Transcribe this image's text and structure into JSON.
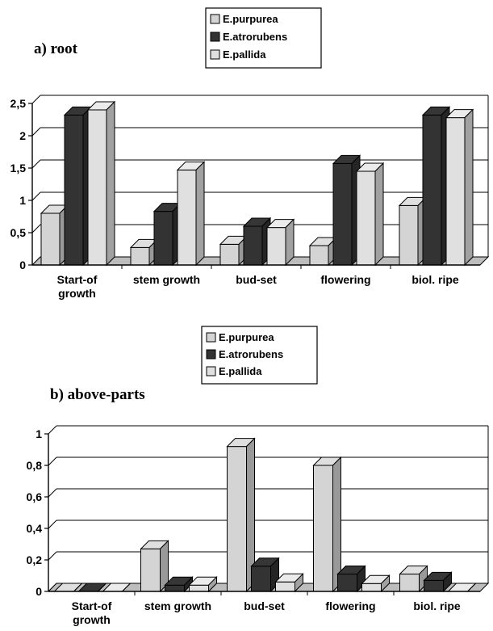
{
  "colors": {
    "purpurea": "#d4d4d4",
    "atrorubens": "#333333",
    "pallida": "#e0e0e0",
    "grid": "#000000",
    "axis": "#000000"
  },
  "chart_data": [
    {
      "type": "bar",
      "title": "a) root",
      "categories": [
        "Start-of growth",
        "stem growth",
        "bud-set",
        "flowering",
        "biol. ripe"
      ],
      "category_lines": [
        [
          "Start-of",
          "growth"
        ],
        [
          "stem growth"
        ],
        [
          "bud-set"
        ],
        [
          "flowering"
        ],
        [
          "biol. ripe"
        ]
      ],
      "series": [
        {
          "name": "E.purpurea",
          "values": [
            0.8,
            0.27,
            0.32,
            0.3,
            0.92
          ]
        },
        {
          "name": "E.atrorubens",
          "values": [
            2.32,
            0.83,
            0.6,
            1.57,
            2.32
          ]
        },
        {
          "name": "E.pallida",
          "values": [
            2.4,
            1.47,
            0.58,
            1.45,
            2.28
          ]
        }
      ],
      "ylim": [
        0,
        2.5
      ],
      "yticks": [
        "0",
        "0,5",
        "1",
        "1,5",
        "2",
        "2,5"
      ],
      "ytick_values": [
        0,
        0.5,
        1,
        1.5,
        2,
        2.5
      ],
      "grid": true,
      "legend": "top-center",
      "xlabel": "",
      "ylabel": ""
    },
    {
      "type": "bar",
      "title": "b) above-parts",
      "categories": [
        "Start-of growth",
        "stem growth",
        "bud-set",
        "flowering",
        "biol. ripe"
      ],
      "category_lines": [
        [
          "Start-of",
          "growth"
        ],
        [
          "stem growth"
        ],
        [
          "bud-set"
        ],
        [
          "flowering"
        ],
        [
          "biol. ripe"
        ]
      ],
      "series": [
        {
          "name": "E.purpurea",
          "values": [
            0,
            0.27,
            0.92,
            0.8,
            0.11
          ]
        },
        {
          "name": "E.atrorubens",
          "values": [
            0,
            0.04,
            0.16,
            0.11,
            0.07
          ]
        },
        {
          "name": "E.pallida",
          "values": [
            0,
            0.04,
            0.06,
            0.05,
            0.0
          ]
        }
      ],
      "ylim": [
        0,
        1
      ],
      "yticks": [
        "0",
        "0,2",
        "0,4",
        "0,6",
        "0,8",
        "1"
      ],
      "ytick_values": [
        0,
        0.2,
        0.4,
        0.6,
        0.8,
        1
      ],
      "grid": true,
      "legend": "top-center",
      "xlabel": "",
      "ylabel": ""
    }
  ]
}
